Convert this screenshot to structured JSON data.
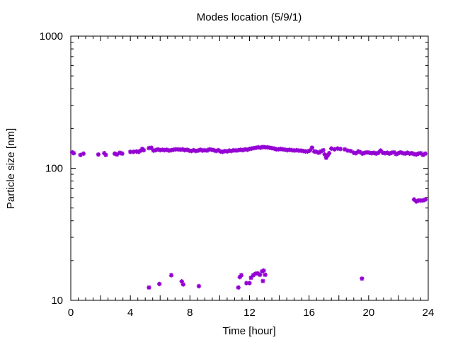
{
  "chart_data": {
    "type": "scatter",
    "title": "Modes location (5/9/1)",
    "xlabel": "Time [hour]",
    "ylabel": "Particle size [nm]",
    "xlim": [
      0,
      24
    ],
    "ylim": [
      10,
      1000
    ],
    "yscale": "log",
    "x_ticks": [
      "0",
      "4",
      "8",
      "12",
      "16",
      "20",
      "24"
    ],
    "y_ticks": [
      "10",
      "100",
      "1000"
    ],
    "grid": false,
    "legend": "none",
    "marker": "asterisk",
    "color": "#9400d3",
    "series": [
      {
        "points": [
          [
            0.1,
            132
          ],
          [
            0.2,
            130
          ],
          [
            0.65,
            126
          ],
          [
            0.85,
            129
          ],
          [
            1.85,
            127
          ],
          [
            2.25,
            130
          ],
          [
            2.35,
            126
          ],
          [
            2.95,
            129
          ],
          [
            3.1,
            127
          ],
          [
            3.3,
            131
          ],
          [
            3.45,
            129
          ],
          [
            4.0,
            133
          ],
          [
            4.2,
            133
          ],
          [
            4.4,
            134
          ],
          [
            4.55,
            133
          ],
          [
            4.7,
            136
          ],
          [
            4.8,
            140
          ],
          [
            4.9,
            137
          ],
          [
            5.25,
            142
          ],
          [
            5.4,
            143
          ],
          [
            5.55,
            136
          ],
          [
            5.7,
            137
          ],
          [
            5.85,
            139
          ],
          [
            6.0,
            137
          ],
          [
            6.15,
            138
          ],
          [
            6.3,
            137
          ],
          [
            6.45,
            138
          ],
          [
            6.6,
            136
          ],
          [
            6.75,
            137
          ],
          [
            6.9,
            138
          ],
          [
            7.05,
            139
          ],
          [
            7.2,
            139
          ],
          [
            7.35,
            138
          ],
          [
            7.5,
            139
          ],
          [
            7.65,
            137
          ],
          [
            7.8,
            138
          ],
          [
            7.95,
            136
          ],
          [
            8.1,
            135
          ],
          [
            8.25,
            137
          ],
          [
            8.4,
            135
          ],
          [
            8.55,
            136
          ],
          [
            8.7,
            138
          ],
          [
            8.85,
            136
          ],
          [
            9.0,
            137
          ],
          [
            9.15,
            136
          ],
          [
            9.3,
            139
          ],
          [
            9.45,
            138
          ],
          [
            9.6,
            137
          ],
          [
            9.75,
            135
          ],
          [
            9.9,
            137
          ],
          [
            10.05,
            134
          ],
          [
            10.2,
            133
          ],
          [
            10.35,
            135
          ],
          [
            10.5,
            134
          ],
          [
            10.65,
            136
          ],
          [
            10.8,
            135
          ],
          [
            10.95,
            137
          ],
          [
            11.1,
            136
          ],
          [
            11.25,
            137
          ],
          [
            11.4,
            138
          ],
          [
            11.55,
            137
          ],
          [
            11.7,
            139
          ],
          [
            11.85,
            138
          ],
          [
            12.0,
            140
          ],
          [
            12.15,
            141
          ],
          [
            12.3,
            142
          ],
          [
            12.45,
            143
          ],
          [
            12.6,
            144
          ],
          [
            12.75,
            143
          ],
          [
            12.9,
            145
          ],
          [
            13.05,
            144
          ],
          [
            13.2,
            144
          ],
          [
            13.35,
            143
          ],
          [
            13.5,
            142
          ],
          [
            13.65,
            141
          ],
          [
            13.8,
            139
          ],
          [
            13.95,
            139
          ],
          [
            14.1,
            140
          ],
          [
            14.25,
            139
          ],
          [
            14.4,
            138
          ],
          [
            14.55,
            137
          ],
          [
            14.7,
            138
          ],
          [
            14.85,
            137
          ],
          [
            15.0,
            136
          ],
          [
            15.15,
            137
          ],
          [
            15.3,
            136
          ],
          [
            15.45,
            136
          ],
          [
            15.6,
            135
          ],
          [
            15.75,
            134
          ],
          [
            15.9,
            134
          ],
          [
            16.05,
            136
          ],
          [
            16.2,
            143
          ],
          [
            16.35,
            134
          ],
          [
            16.5,
            133
          ],
          [
            16.65,
            131
          ],
          [
            16.8,
            134
          ],
          [
            16.95,
            137
          ],
          [
            17.05,
            127
          ],
          [
            17.15,
            120
          ],
          [
            17.25,
            125
          ],
          [
            17.35,
            130
          ],
          [
            17.5,
            141
          ],
          [
            17.7,
            139
          ],
          [
            17.9,
            141
          ],
          [
            18.1,
            140
          ],
          [
            18.4,
            139
          ],
          [
            18.6,
            136
          ],
          [
            18.8,
            135
          ],
          [
            19.0,
            131
          ],
          [
            19.15,
            130
          ],
          [
            19.3,
            134
          ],
          [
            19.45,
            132
          ],
          [
            19.6,
            129
          ],
          [
            19.75,
            131
          ],
          [
            19.9,
            132
          ],
          [
            20.05,
            131
          ],
          [
            20.2,
            130
          ],
          [
            20.35,
            131
          ],
          [
            20.5,
            129
          ],
          [
            20.65,
            131
          ],
          [
            20.8,
            136
          ],
          [
            20.95,
            131
          ],
          [
            21.1,
            130
          ],
          [
            21.25,
            131
          ],
          [
            21.4,
            129
          ],
          [
            21.55,
            131
          ],
          [
            21.7,
            132
          ],
          [
            21.85,
            128
          ],
          [
            22.0,
            130
          ],
          [
            22.15,
            132
          ],
          [
            22.3,
            130
          ],
          [
            22.45,
            129
          ],
          [
            22.6,
            131
          ],
          [
            22.75,
            129
          ],
          [
            22.9,
            130
          ],
          [
            23.05,
            128
          ],
          [
            23.2,
            127
          ],
          [
            23.35,
            129
          ],
          [
            23.5,
            130
          ],
          [
            23.65,
            126
          ],
          [
            23.8,
            129
          ],
          [
            5.25,
            12.5
          ],
          [
            5.95,
            13.3
          ],
          [
            6.75,
            15.5
          ],
          [
            7.45,
            13.9
          ],
          [
            7.55,
            13.2
          ],
          [
            8.6,
            12.8
          ],
          [
            11.25,
            12.5
          ],
          [
            11.35,
            15.0
          ],
          [
            11.45,
            15.5
          ],
          [
            11.8,
            13.5
          ],
          [
            12.0,
            13.5
          ],
          [
            12.1,
            14.8
          ],
          [
            12.25,
            15.5
          ],
          [
            12.4,
            15.9
          ],
          [
            12.55,
            16.0
          ],
          [
            12.7,
            15.6
          ],
          [
            12.85,
            16.6
          ],
          [
            12.95,
            16.8
          ],
          [
            13.05,
            15.6
          ],
          [
            12.9,
            14.0
          ],
          [
            19.55,
            14.6
          ],
          [
            23.05,
            58
          ],
          [
            23.2,
            56
          ],
          [
            23.35,
            57
          ],
          [
            23.5,
            57
          ],
          [
            23.65,
            57
          ],
          [
            23.8,
            58
          ]
        ]
      }
    ]
  }
}
